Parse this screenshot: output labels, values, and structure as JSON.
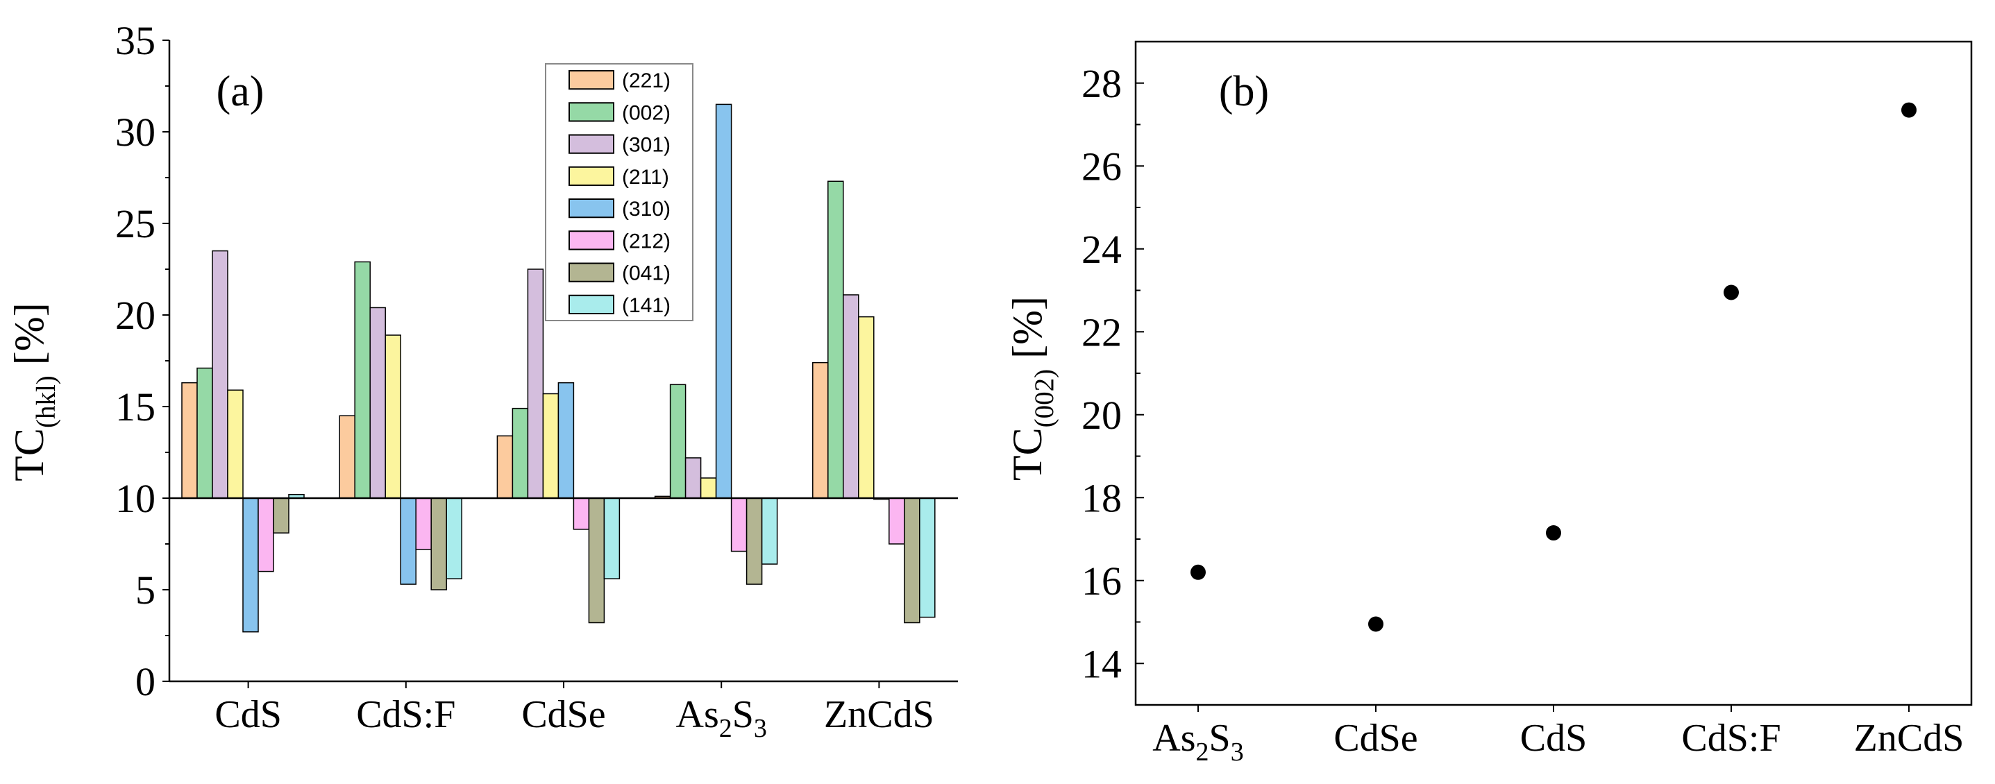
{
  "colors": {
    "(221)": "#FCCB9E",
    "(002)": "#95D9A6",
    "(301)": "#D4BEDD",
    "(211)": "#FCF59E",
    "(310)": "#88C4EE",
    "(212)": "#FBB6F1",
    "(041)": "#B3B592",
    "(141)": "#A9ECEC"
  },
  "chart_data": [
    {
      "panel_label": "(a)",
      "type": "bar",
      "baseline": 10,
      "categories": [
        "CdS",
        "CdS:F",
        "CdSe",
        "As2S3",
        "ZnCdS"
      ],
      "category_labels": [
        {
          "parts": [
            {
              "t": "CdS"
            }
          ]
        },
        {
          "parts": [
            {
              "t": "CdS:F"
            }
          ]
        },
        {
          "parts": [
            {
              "t": "CdSe"
            }
          ]
        },
        {
          "parts": [
            {
              "t": "As"
            },
            {
              "t": "2",
              "sub": true
            },
            {
              "t": "S"
            },
            {
              "t": "3",
              "sub": true
            }
          ]
        },
        {
          "parts": [
            {
              "t": "ZnCdS"
            }
          ]
        }
      ],
      "series": [
        {
          "name": "(221)",
          "values": [
            16.3,
            14.5,
            13.4,
            10.1,
            17.4
          ]
        },
        {
          "name": "(002)",
          "values": [
            17.1,
            22.9,
            14.9,
            16.2,
            27.3
          ]
        },
        {
          "name": "(301)",
          "values": [
            23.5,
            20.4,
            22.5,
            12.2,
            21.1
          ]
        },
        {
          "name": "(211)",
          "values": [
            15.9,
            18.9,
            15.7,
            11.1,
            19.9
          ]
        },
        {
          "name": "(310)",
          "values": [
            2.7,
            5.3,
            16.3,
            31.5,
            10.0
          ]
        },
        {
          "name": "(212)",
          "values": [
            6.0,
            7.2,
            8.3,
            7.1,
            7.5
          ]
        },
        {
          "name": "(041)",
          "values": [
            8.1,
            5.0,
            3.2,
            5.3,
            3.2
          ]
        },
        {
          "name": "(141)",
          "values": [
            10.2,
            5.6,
            5.6,
            6.4,
            3.5
          ]
        }
      ],
      "ylim": [
        0,
        35
      ],
      "yticks": [
        0,
        5,
        10,
        15,
        20,
        25,
        30,
        35
      ],
      "ylabel": {
        "main": "TC",
        "sub": "(hkl)",
        "unit": " [%]"
      },
      "xlabel": "",
      "legend_position": "top-center",
      "grid": false
    },
    {
      "panel_label": "(b)",
      "type": "scatter",
      "categories": [
        "As2S3",
        "CdSe",
        "CdS",
        "CdS:F",
        "ZnCdS"
      ],
      "category_labels": [
        {
          "parts": [
            {
              "t": "As"
            },
            {
              "t": "2",
              "sub": true
            },
            {
              "t": "S"
            },
            {
              "t": "3",
              "sub": true
            }
          ]
        },
        {
          "parts": [
            {
              "t": "CdSe"
            }
          ]
        },
        {
          "parts": [
            {
              "t": "CdS"
            }
          ]
        },
        {
          "parts": [
            {
              "t": "CdS:F"
            }
          ]
        },
        {
          "parts": [
            {
              "t": "ZnCdS"
            }
          ]
        }
      ],
      "values": [
        16.2,
        14.95,
        17.15,
        22.95,
        27.35
      ],
      "ylim": [
        13,
        29
      ],
      "yticks": [
        14,
        16,
        18,
        20,
        22,
        24,
        26,
        28
      ],
      "ylabel": {
        "main": "TC",
        "sub": "(002)",
        "unit": " [%]"
      },
      "xlabel": "",
      "grid": false
    }
  ]
}
